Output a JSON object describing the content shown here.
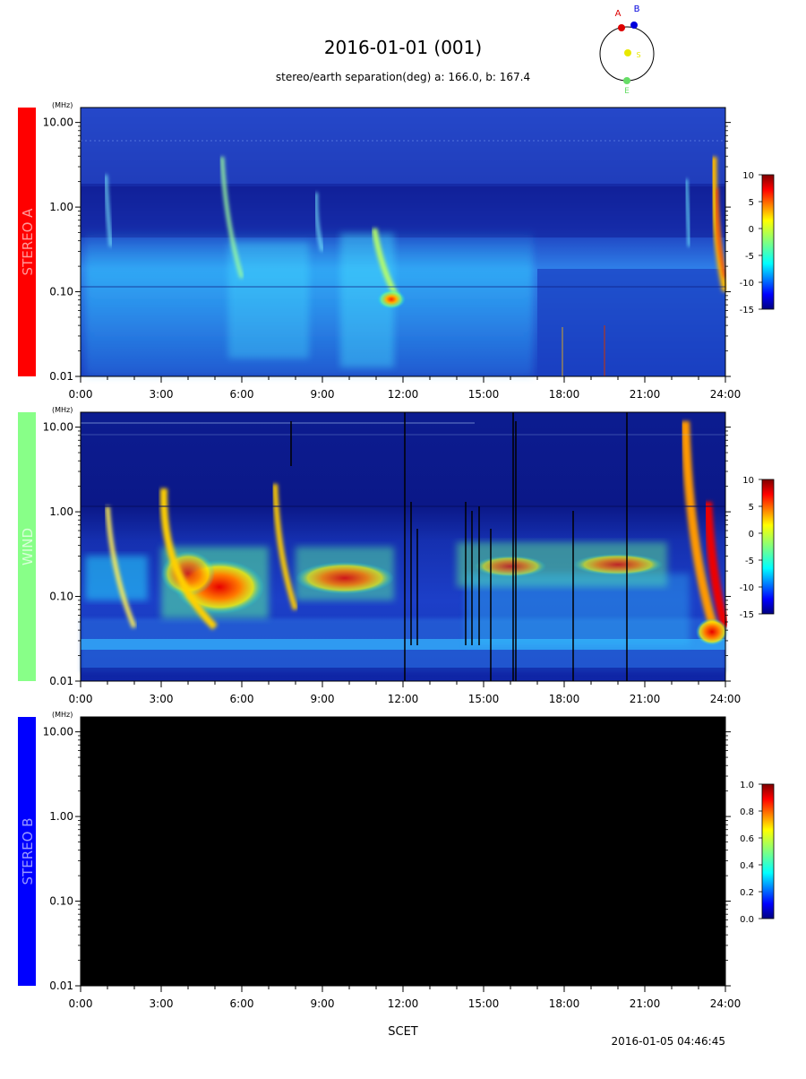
{
  "header": {
    "title": "2016-01-01 (001)",
    "subtitle": "stereo/earth separation(deg) a: 166.0, b: 167.4"
  },
  "orbit": {
    "markers": [
      {
        "label": "A",
        "color": "#dd0000"
      },
      {
        "label": "B",
        "color": "#0000dd"
      },
      {
        "label": "S",
        "color": "#e8e800"
      },
      {
        "label": "E",
        "color": "#66dd66"
      }
    ]
  },
  "footer": {
    "xlabel": "SCET",
    "timestamp": "2016-01-05 04:46:45"
  },
  "chart_data": [
    {
      "type": "heatmap",
      "panel": "STEREO A",
      "side_label": "STEREO A",
      "side_label_color": "#ff0000",
      "y_unit": "(MHz)",
      "y_scale": "log",
      "ylim": [
        0.01,
        15
      ],
      "yticks": [
        "10.00",
        "1.00",
        "0.10",
        "0.01"
      ],
      "ytick_values": [
        10,
        1,
        0.1,
        0.01
      ],
      "xticks": [
        "0:00",
        "3:00",
        "6:00",
        "9:00",
        "12:00",
        "15:00",
        "18:00",
        "21:00",
        "24:00"
      ],
      "xlim_hours": [
        0,
        24
      ],
      "colorbar": {
        "ticks": [
          "10",
          "5",
          "0",
          "-5",
          "-10",
          "-15"
        ],
        "range": [
          -15,
          10
        ],
        "colormap": "jet"
      },
      "features": [
        {
          "kind": "type-III burst",
          "start_hour": 0.9,
          "end_hour": 1.1
        },
        {
          "kind": "type-III burst",
          "start_hour": 5.3,
          "end_hour": 5.9
        },
        {
          "kind": "type-III burst",
          "start_hour": 8.6,
          "end_hour": 9.0
        },
        {
          "kind": "type-III burst",
          "start_hour": 11.0,
          "end_hour": 12.3
        },
        {
          "kind": "type-III burst",
          "start_hour": 22.6,
          "end_hour": 22.8
        },
        {
          "kind": "type-III burst",
          "start_hour": 23.5,
          "end_hour": 24.0
        }
      ]
    },
    {
      "type": "heatmap",
      "panel": "WIND",
      "side_label": "WIND",
      "side_label_color": "#88ff88",
      "y_unit": "(MHz)",
      "y_scale": "log",
      "ylim": [
        0.01,
        15
      ],
      "yticks": [
        "10.00",
        "1.00",
        "0.10",
        "0.01"
      ],
      "ytick_values": [
        10,
        1,
        0.1,
        0.01
      ],
      "xticks": [
        "0:00",
        "3:00",
        "6:00",
        "9:00",
        "12:00",
        "15:00",
        "18:00",
        "21:00",
        "24:00"
      ],
      "xlim_hours": [
        0,
        24
      ],
      "colorbar": {
        "ticks": [
          "10",
          "5",
          "0",
          "-5",
          "-10",
          "-15"
        ],
        "range": [
          -15,
          10
        ],
        "colormap": "jet"
      },
      "features": [
        {
          "kind": "type-III burst",
          "start_hour": 0.8,
          "end_hour": 1.6
        },
        {
          "kind": "type-III burst",
          "start_hour": 2.9,
          "end_hour": 4.5
        },
        {
          "kind": "intense emission",
          "start_hour": 4.0,
          "end_hour": 6.8
        },
        {
          "kind": "type-III burst",
          "start_hour": 7.4,
          "end_hour": 8.3
        },
        {
          "kind": "intense emission",
          "start_hour": 8.2,
          "end_hour": 11.5
        },
        {
          "kind": "intense emission",
          "start_hour": 14.3,
          "end_hour": 21.5
        },
        {
          "kind": "type-III burst",
          "start_hour": 22.5,
          "end_hour": 24.0
        }
      ]
    },
    {
      "type": "heatmap",
      "panel": "STEREO B",
      "side_label": "STEREO B",
      "side_label_color": "#0000ff",
      "y_unit": "(MHz)",
      "y_scale": "log",
      "ylim": [
        0.01,
        15
      ],
      "yticks": [
        "10.00",
        "1.00",
        "0.10",
        "0.01"
      ],
      "ytick_values": [
        10,
        1,
        0.1,
        0.01
      ],
      "xticks": [
        "0:00",
        "3:00",
        "6:00",
        "9:00",
        "12:00",
        "15:00",
        "18:00",
        "21:00",
        "24:00"
      ],
      "xlim_hours": [
        0,
        24
      ],
      "colorbar": {
        "ticks": [
          "1.0",
          "0.8",
          "0.6",
          "0.4",
          "0.2",
          "0.0"
        ],
        "range": [
          0,
          1
        ],
        "colormap": "jet"
      },
      "no_data": true,
      "features": []
    }
  ]
}
